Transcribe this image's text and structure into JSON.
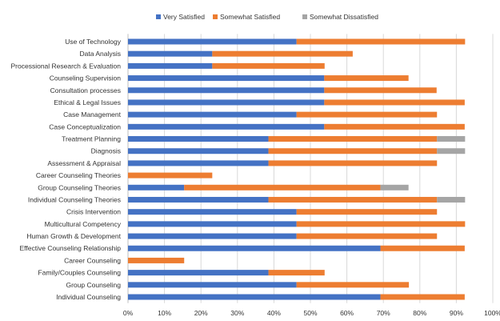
{
  "chart_data": {
    "type": "bar",
    "orientation": "horizontal",
    "stacked": true,
    "categories": [
      "Use of Technology",
      "Data Analysis",
      "Processional Research & Evaluation",
      "Counseling Supervision",
      "Consultation processes",
      "Ethical & Legal Issues",
      "Case Management",
      "Case Conceptualization",
      "Treatment Planning",
      "Diagnosis",
      "Assessment & Appraisal",
      "Career Counseling Theories",
      "Group Counseling Theories",
      "Individual Counseling Theories",
      "Crisis Intervention",
      "Multicultural Competency",
      "Human Growth & Development",
      "Effective Counseling Relationship",
      "Career Counseling",
      "Family/Couples Counseling",
      "Group Counseling",
      "Individual Counseling"
    ],
    "series": [
      {
        "name": "Very Satisfied",
        "color": "#4472C4",
        "values": [
          46.2,
          23.1,
          23.1,
          53.8,
          53.8,
          53.8,
          46.2,
          53.8,
          38.5,
          38.5,
          38.5,
          0,
          15.4,
          38.5,
          46.2,
          46.2,
          46.2,
          69.2,
          0,
          38.5,
          46.2,
          69.2
        ]
      },
      {
        "name": "Somewhat Satisfied",
        "color": "#ED7D31",
        "values": [
          46.2,
          38.5,
          30.8,
          23.1,
          30.8,
          38.5,
          38.5,
          38.5,
          46.2,
          46.2,
          46.2,
          23.1,
          53.8,
          46.2,
          38.5,
          46.2,
          38.5,
          23.1,
          15.4,
          15.4,
          30.8,
          23.1
        ]
      },
      {
        "name": "Somewhat Dissatisfied",
        "color": "#A5A5A5",
        "values": [
          0,
          0,
          0,
          0,
          0,
          0,
          0,
          0,
          7.7,
          7.7,
          0,
          0,
          7.7,
          7.7,
          0,
          0,
          0,
          0,
          0,
          0,
          0,
          0
        ]
      }
    ],
    "xlim": [
      0,
      100
    ],
    "xticks": [
      0,
      10,
      20,
      30,
      40,
      50,
      60,
      70,
      80,
      90,
      100
    ],
    "xtick_labels": [
      "0%",
      "10%",
      "20%",
      "30%",
      "40%",
      "50%",
      "60%",
      "70%",
      "80%",
      "90%",
      "100%"
    ],
    "grid": true,
    "legend_position": "top"
  }
}
